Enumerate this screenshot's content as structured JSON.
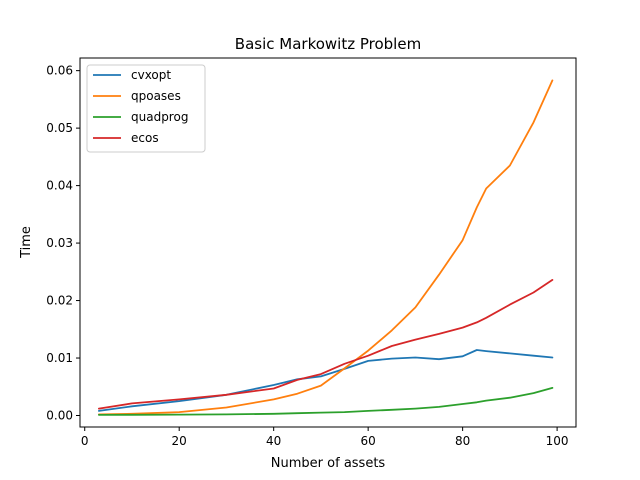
{
  "chart_data": {
    "type": "line",
    "title": "Basic Markowitz Problem",
    "xlabel": "Number of assets",
    "ylabel": "Time",
    "xlim": [
      -1,
      104
    ],
    "ylim": [
      -0.002,
      0.0622
    ],
    "xticks": [
      0,
      20,
      40,
      60,
      80,
      100
    ],
    "xtick_labels": [
      "0",
      "20",
      "40",
      "60",
      "80",
      "100"
    ],
    "yticks": [
      0.0,
      0.01,
      0.02,
      0.03,
      0.04,
      0.05,
      0.06
    ],
    "ytick_labels": [
      "0.00",
      "0.01",
      "0.02",
      "0.03",
      "0.04",
      "0.05",
      "0.06"
    ],
    "grid": false,
    "legend_position": "top-left",
    "x": [
      3,
      10,
      20,
      30,
      40,
      45,
      50,
      55,
      60,
      65,
      70,
      75,
      80,
      83,
      85,
      90,
      95,
      99
    ],
    "series": [
      {
        "name": "cvxopt",
        "color": "#1f77b4",
        "values": [
          0.0008,
          0.0016,
          0.0025,
          0.0036,
          0.0053,
          0.0063,
          0.0068,
          0.0081,
          0.0095,
          0.0099,
          0.0101,
          0.0098,
          0.0103,
          0.0114,
          0.0112,
          0.0108,
          0.0104,
          0.0101
        ]
      },
      {
        "name": "qpoases",
        "color": "#ff7f0e",
        "values": [
          0.0002,
          0.0003,
          0.0006,
          0.0014,
          0.0028,
          0.0038,
          0.0052,
          0.0082,
          0.0113,
          0.0148,
          0.0188,
          0.0245,
          0.0305,
          0.0362,
          0.0395,
          0.0435,
          0.051,
          0.0583
        ]
      },
      {
        "name": "quadprog",
        "color": "#2ca02c",
        "values": [
          0.0001,
          0.00012,
          0.00015,
          0.0002,
          0.0003,
          0.0004,
          0.0005,
          0.0006,
          0.0008,
          0.001,
          0.0012,
          0.0015,
          0.002,
          0.0023,
          0.0026,
          0.0031,
          0.0039,
          0.0048
        ]
      },
      {
        "name": "ecos",
        "color": "#d62728",
        "values": [
          0.0012,
          0.0021,
          0.0028,
          0.0036,
          0.0047,
          0.0062,
          0.0072,
          0.009,
          0.0104,
          0.0121,
          0.0132,
          0.0142,
          0.0153,
          0.0162,
          0.017,
          0.0193,
          0.0214,
          0.0236
        ]
      }
    ]
  }
}
